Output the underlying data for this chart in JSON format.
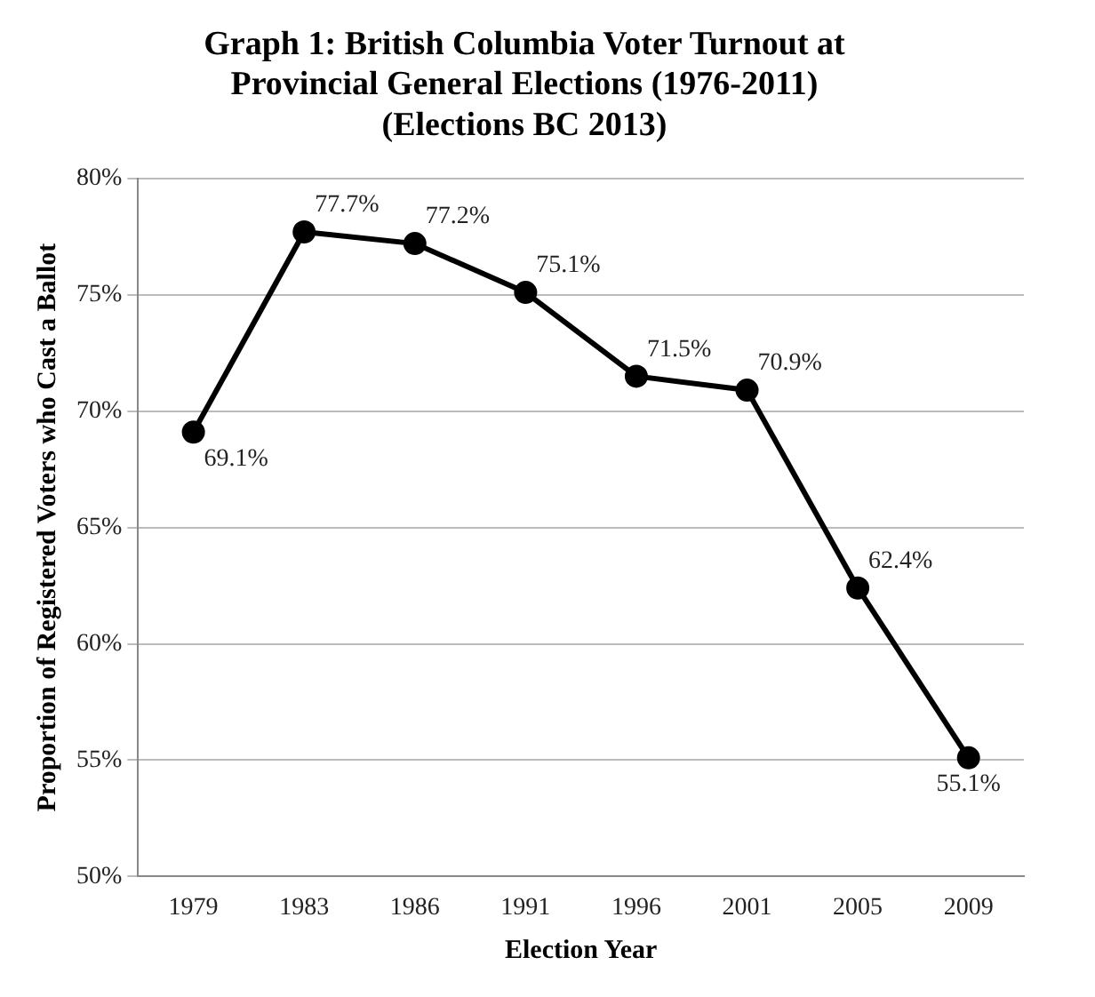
{
  "chart_data": {
    "type": "line",
    "title": [
      "Graph 1: British Columbia Voter Turnout at",
      "Provincial General Elections (1976-2011)",
      "(Elections BC 2013)"
    ],
    "xlabel": "Election Year",
    "ylabel": "Proportion of Registered Voters who Cast a Ballot",
    "categories": [
      "1979",
      "1983",
      "1986",
      "1991",
      "1996",
      "2001",
      "2005",
      "2009"
    ],
    "series": [
      {
        "color": "#000000",
        "values": [
          69.1,
          77.7,
          77.2,
          75.1,
          71.5,
          70.9,
          62.4,
          55.1
        ],
        "value_labels": [
          "69.1%",
          "77.7%",
          "77.2%",
          "75.1%",
          "71.5%",
          "70.9%",
          "62.4%",
          "55.1%"
        ]
      }
    ],
    "ylim": [
      50,
      80
    ],
    "yticks": [
      {
        "value": 50,
        "label": "50%"
      },
      {
        "value": 55,
        "label": "55%"
      },
      {
        "value": 60,
        "label": "60%"
      },
      {
        "value": 65,
        "label": "65%"
      },
      {
        "value": 70,
        "label": "70%"
      },
      {
        "value": 75,
        "label": "75%"
      },
      {
        "value": 80,
        "label": "80%"
      }
    ],
    "grid": "y",
    "legend": false,
    "marker": "circle",
    "line_style": "solid"
  }
}
